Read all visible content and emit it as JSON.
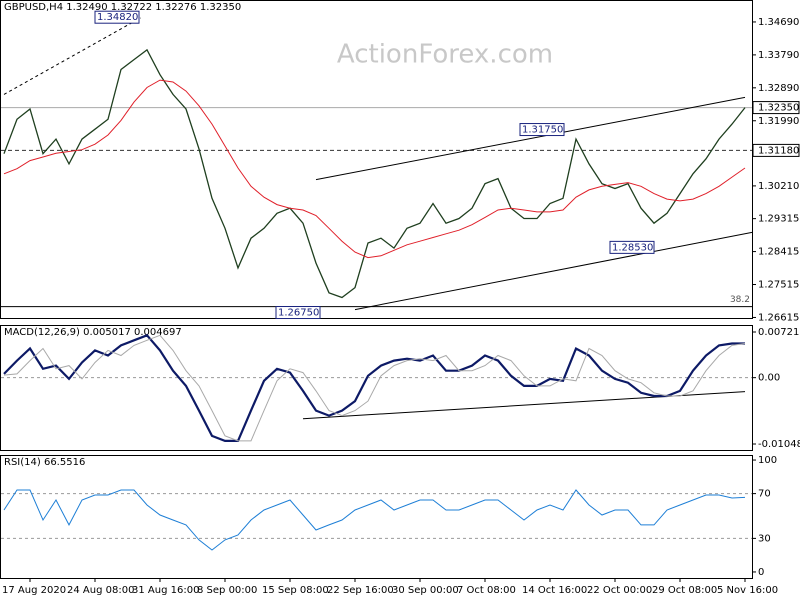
{
  "chart_data": [
    {
      "type": "line",
      "title": "GBPUSD,H4  1.32490 1.32722 1.32276 1.32350",
      "watermark": "ActionForex.com",
      "ylim": [
        1.266,
        1.3529
      ],
      "yticks": [
        {
          "value": 1.3469,
          "label": "1.34690"
        },
        {
          "value": 1.3379,
          "label": "1.33790"
        },
        {
          "value": 1.3289,
          "label": "1.32890"
        },
        {
          "value": 1.3199,
          "label": "1.31990"
        },
        {
          "value": 1.3021,
          "label": "1.30210"
        },
        1.29315,
        1.28415,
        1.27515,
        1.26615
      ],
      "series": [
        {
          "name": "GBPUSD",
          "color": "#1f3f1f",
          "width": 1.3,
          "values": [
            1.3109,
            1.3203,
            1.3231,
            1.3109,
            1.3149,
            1.3081,
            1.3149,
            1.3176,
            1.3203,
            1.3339,
            1.3366,
            1.3393,
            1.3325,
            1.3271,
            1.3231,
            1.3122,
            1.2987,
            1.2905,
            1.2797,
            1.2878,
            1.2905,
            1.2946,
            1.296,
            1.2919,
            1.281,
            1.2729,
            1.2716,
            1.2743,
            1.2865,
            1.2878,
            1.2851,
            1.2905,
            1.2919,
            1.2973,
            1.2919,
            1.2932,
            1.296,
            1.3027,
            1.3041,
            1.296,
            1.2932,
            1.2932,
            1.2973,
            1.2987,
            1.3149,
            1.3081,
            1.3027,
            1.3014,
            1.3027,
            1.296,
            1.2919,
            1.2946,
            1.3,
            1.3054,
            1.3095,
            1.3149,
            1.319,
            1.3235
          ]
        },
        {
          "name": "MA",
          "color": "#e0202a",
          "width": 1,
          "values": [
            1.3054,
            1.3068,
            1.309,
            1.31,
            1.311,
            1.3115,
            1.312,
            1.3135,
            1.316,
            1.32,
            1.325,
            1.329,
            1.331,
            1.3305,
            1.328,
            1.324,
            1.319,
            1.313,
            1.307,
            1.302,
            1.299,
            1.297,
            1.296,
            1.2955,
            1.294,
            1.2905,
            1.287,
            1.284,
            1.2825,
            1.283,
            1.2845,
            1.286,
            1.287,
            1.288,
            1.289,
            1.29,
            1.2915,
            1.2935,
            1.2955,
            1.296,
            1.2955,
            1.295,
            1.295,
            1.2955,
            1.299,
            1.301,
            1.302,
            1.3025,
            1.303,
            1.302,
            1.3,
            1.2985,
            1.298,
            1.2985,
            1.3,
            1.302,
            1.3045,
            1.307
          ]
        }
      ],
      "price_labels": [
        {
          "value": 1.3235,
          "label": "1.32350",
          "style": "solid"
        },
        {
          "value": 1.3118,
          "label": "1.31180",
          "style": "dashed"
        }
      ],
      "annotations": [
        {
          "value": 1.3482,
          "label": "1.34820"
        },
        {
          "value": 1.3175,
          "label": "1.31750"
        },
        {
          "value": 1.2853,
          "label": "1.28530"
        },
        {
          "value": 1.2675,
          "label": "1.26750"
        }
      ],
      "fib_line": {
        "level": 1.2691,
        "label": "38.2"
      },
      "trendlines": [
        {
          "x": [
            24,
            57
          ],
          "y": [
            1.3038,
            1.3263
          ],
          "style": "solid"
        },
        {
          "x": [
            27,
            58
          ],
          "y": [
            1.2683,
            1.2894
          ],
          "style": "solid"
        },
        {
          "x": [
            0,
            10.5
          ],
          "y": [
            1.3271,
            1.348
          ],
          "style": "dashed"
        }
      ]
    },
    {
      "type": "line",
      "title": "MACD(12,26,9) 0.005017 0.004697",
      "ylim": [
        -0.01143,
        0.00832
      ],
      "yticks": [
        0.007213,
        {
          "value": 0,
          "label": "0.00"
        },
        -0.01048
      ],
      "levels": [
        0
      ],
      "series": [
        {
          "name": "MACD",
          "color": "#0d1a66",
          "width": 2.2,
          "values": [
            0.0006,
            0.0027,
            0.0046,
            0.0014,
            0.0019,
            -0.0002,
            0.0024,
            0.0043,
            0.0035,
            0.0051,
            0.0059,
            0.0067,
            0.0043,
            0.0011,
            -0.0013,
            -0.0052,
            -0.0092,
            -0.01,
            -0.01,
            -0.0052,
            -0.0005,
            0.0014,
            0.0008,
            -0.0021,
            -0.0052,
            -0.006,
            -0.0052,
            -0.0037,
            0.0003,
            0.0019,
            0.0027,
            0.003,
            0.0027,
            0.0035,
            0.0011,
            0.0011,
            0.0019,
            0.0035,
            0.0027,
            0.0003,
            -0.0013,
            -0.0013,
            -0.0002,
            -0.0005,
            0.0046,
            0.0035,
            0.0011,
            -0.0002,
            -0.0008,
            -0.0024,
            -0.0029,
            -0.0029,
            -0.0021,
            0.0011,
            0.0035,
            0.0051,
            0.0054,
            0.0054
          ]
        },
        {
          "name": "Signal",
          "color": "#a9a9a9",
          "width": 1,
          "values": [
            0.0004,
            0.0006,
            0.0027,
            0.0046,
            0.0014,
            0.0019,
            -0.0002,
            0.0024,
            0.0043,
            0.0035,
            0.0051,
            0.0059,
            0.0067,
            0.0043,
            0.0011,
            -0.0013,
            -0.0052,
            -0.0092,
            -0.01,
            -0.01,
            -0.0052,
            -0.0005,
            0.0014,
            0.0008,
            -0.0021,
            -0.0052,
            -0.006,
            -0.0052,
            -0.0037,
            0.0003,
            0.0019,
            0.0027,
            0.003,
            0.0027,
            0.0035,
            0.0011,
            0.0011,
            0.0019,
            0.0035,
            0.0027,
            0.0003,
            -0.0013,
            -0.0013,
            -0.0002,
            -0.0005,
            0.0046,
            0.0035,
            0.0011,
            -0.0002,
            -0.0008,
            -0.0024,
            -0.0029,
            -0.0029,
            -0.0021,
            0.0011,
            0.0035,
            0.0051,
            0.0054
          ]
        }
      ],
      "trendlines": [
        {
          "x": [
            23,
            57
          ],
          "y": [
            -0.0065,
            -0.0022
          ],
          "style": "solid"
        }
      ]
    },
    {
      "type": "line",
      "title": "RSI(14) 66.5516",
      "ylim": [
        -5.4,
        104.5
      ],
      "yticks": [
        100,
        70,
        30,
        0
      ],
      "levels": [
        70,
        30
      ],
      "categories": [
        null,
        null,
        "17 Aug 2020",
        null,
        null,
        null,
        null,
        "24 Aug 08:00",
        null,
        null,
        null,
        null,
        "31 Aug 16:00",
        null,
        null,
        null,
        null,
        "8 Sep 00:00",
        null,
        null,
        null,
        null,
        "15 Sep 08:00",
        null,
        null,
        null,
        null,
        "22 Sep 16:00",
        null,
        null,
        null,
        null,
        "30 Sep 00:00",
        null,
        null,
        null,
        null,
        "7 Oct 08:00",
        null,
        null,
        null,
        null,
        "14 Oct 16:00",
        null,
        null,
        null,
        null,
        "22 Oct 00:00",
        null,
        null,
        null,
        null,
        "29 Oct 08:00",
        null,
        null,
        null,
        null,
        "5 Nov 16:00"
      ],
      "series": [
        {
          "name": "RSI",
          "color": "#1e7fd6",
          "width": 1,
          "values": [
            55.4,
            73.2,
            73.2,
            46.4,
            64.3,
            42.0,
            64.3,
            68.8,
            68.8,
            73.2,
            73.2,
            59.8,
            50.9,
            46.4,
            42.0,
            28.6,
            19.6,
            28.6,
            33.0,
            46.4,
            55.4,
            59.8,
            64.3,
            50.9,
            37.5,
            42.0,
            46.4,
            55.4,
            59.8,
            64.3,
            55.4,
            59.8,
            64.3,
            64.3,
            55.4,
            55.4,
            59.8,
            64.3,
            64.3,
            55.4,
            46.4,
            55.4,
            59.8,
            55.4,
            73.2,
            59.8,
            50.9,
            55.4,
            55.4,
            42.0,
            42.0,
            55.4,
            59.8,
            64.3,
            68.8,
            68.8,
            66.1,
            66.6
          ]
        }
      ]
    }
  ]
}
